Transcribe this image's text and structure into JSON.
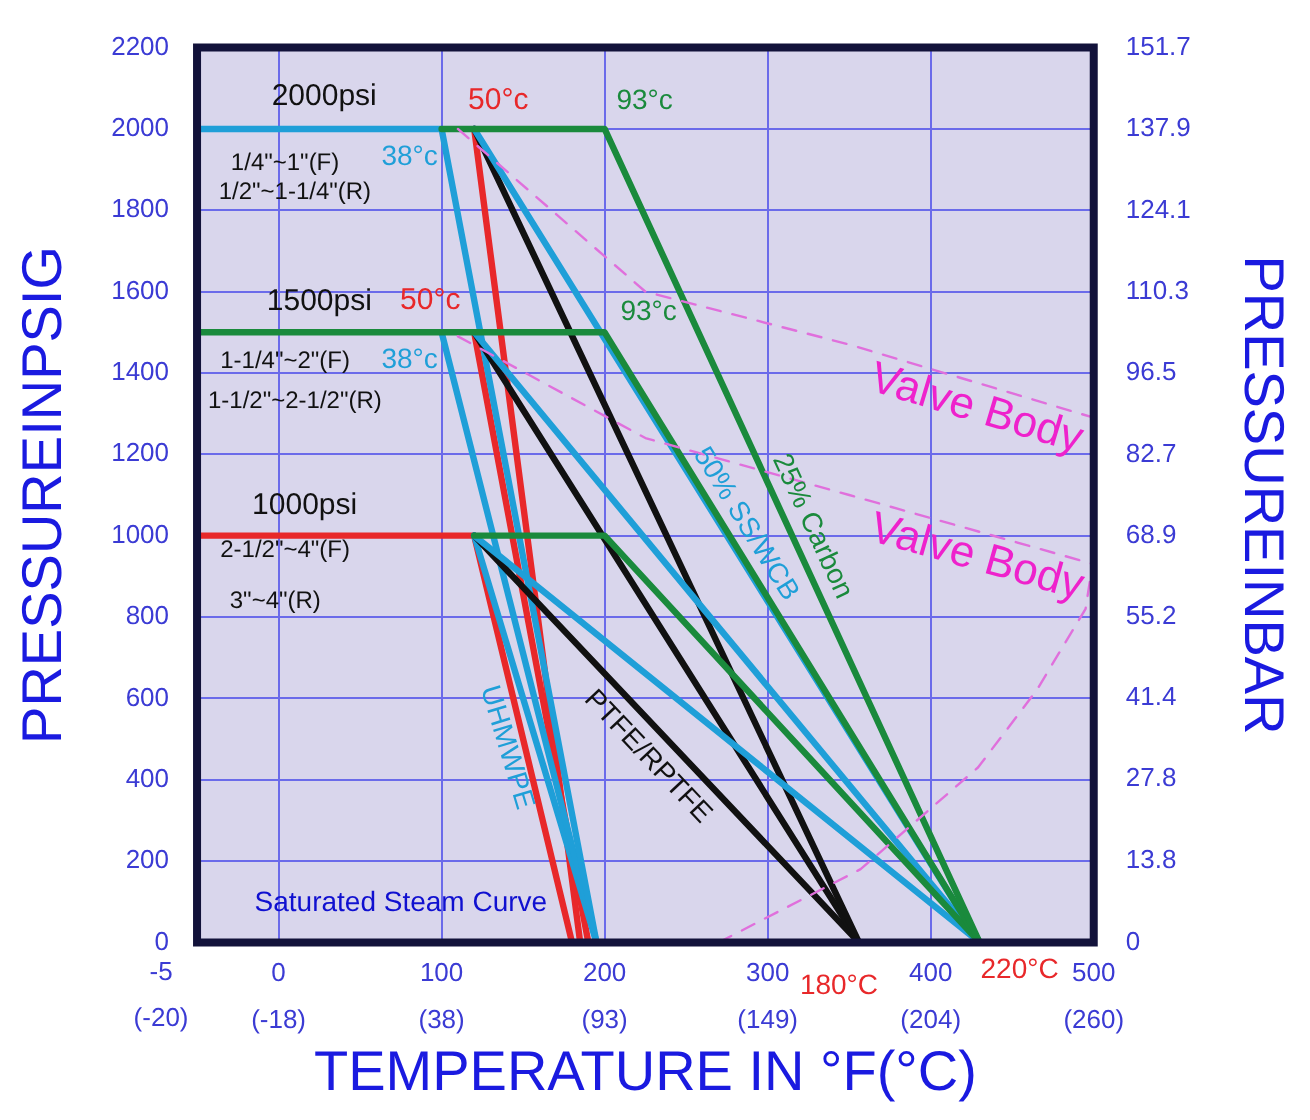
{
  "chart_data": {
    "type": "line",
    "xlabel": "TEMPERATURE IN °F(°C)",
    "ylabel": "PRESSUREINPSIG",
    "y2label": "PRESSUREINBAR",
    "xlim": [
      -50,
      500
    ],
    "xticks": [
      0,
      100,
      200,
      300,
      400,
      500
    ],
    "x2lim": [
      -45.56,
      260
    ],
    "x2ticks": [
      {
        "value": -17.78,
        "label": "(-18)"
      },
      {
        "value": 37.78,
        "label": "(38)"
      },
      {
        "value": 93.33,
        "label": "(93)"
      },
      {
        "value": 148.89,
        "label": "(149)"
      },
      {
        "value": 204.44,
        "label": "(204)"
      },
      {
        "value": 260,
        "label": "(260)"
      }
    ],
    "ylim": [
      0,
      2200
    ],
    "yticks": [
      0,
      200,
      400,
      600,
      800,
      1000,
      1200,
      1400,
      1600,
      1800,
      2000,
      2200
    ],
    "y2lim": [
      0,
      151.7
    ],
    "y2ticks": [
      0,
      13.8,
      27.8,
      41.4,
      55.2,
      68.9,
      82.7,
      96.5,
      110.3,
      124.1,
      137.9,
      151.7
    ],
    "grid": true,
    "legend": false,
    "marker": "none",
    "line_style": "solid",
    "series": [
      {
        "name": "Valve Body",
        "color": "#e070dc",
        "line_style": "dashed",
        "x": [
          110,
          225,
          350,
          500
        ],
        "values": [
          2000,
          1600,
          1470,
          1290
        ]
      },
      {
        "name": "Valve Body",
        "color": "#e070dc",
        "line_style": "dashed",
        "x": [
          110,
          225,
          350,
          500
        ],
        "values": [
          1490,
          1240,
          1100,
          930
        ]
      },
      {
        "color": "#e070dc",
        "line_style": "dashed",
        "x": [
          270,
          357,
          429,
          465,
          495,
          500
        ],
        "values": [
          0,
          180,
          430,
          620,
          820,
          950
        ]
      },
      {
        "name": "25% Carbon",
        "color": "#1a8a3c",
        "x": [
          100,
          200,
          430
        ],
        "values": [
          2000,
          2000,
          0
        ]
      },
      {
        "color": "#1a8a3c",
        "x": [
          -50,
          200,
          430
        ],
        "values": [
          1500,
          1500,
          0
        ]
      },
      {
        "color": "#1a8a3c",
        "x": [
          120,
          200,
          430
        ],
        "values": [
          1000,
          1000,
          0
        ]
      },
      {
        "name": "50% SS/WCB",
        "color": "#1f9fd8",
        "x": [
          120,
          430
        ],
        "values": [
          2000,
          0
        ]
      },
      {
        "color": "#1f9fd8",
        "x": [
          120,
          430
        ],
        "values": [
          1500,
          0
        ]
      },
      {
        "color": "#1f9fd8",
        "x": [
          120,
          430
        ],
        "values": [
          1000,
          0
        ]
      },
      {
        "color": "#111111",
        "x": [
          120,
          356
        ],
        "values": [
          2000,
          0
        ]
      },
      {
        "color": "#111111",
        "x": [
          120,
          356
        ],
        "values": [
          1500,
          0
        ]
      },
      {
        "name": "PTFE/RPTFE",
        "color": "#111111",
        "x": [
          120,
          356
        ],
        "values": [
          1000,
          0
        ]
      },
      {
        "color": "#1f9fd8",
        "x": [
          -50,
          100,
          195
        ],
        "values": [
          2000,
          2000,
          0
        ]
      },
      {
        "color": "#1f9fd8",
        "x": [
          100,
          195
        ],
        "values": [
          1500,
          0
        ]
      },
      {
        "name": "UHMWPE",
        "color": "#1f9fd8",
        "x": [
          120,
          195
        ],
        "values": [
          1000,
          0
        ]
      },
      {
        "color": "#e8282a",
        "x": [
          120,
          185
        ],
        "values": [
          2000,
          0
        ]
      },
      {
        "color": "#e8282a",
        "x": [
          120,
          190
        ],
        "values": [
          1500,
          0
        ]
      },
      {
        "color": "#e8282a",
        "x": [
          -50,
          120,
          180
        ],
        "values": [
          1000,
          1000,
          0
        ]
      }
    ],
    "annotations": [
      "2000psi",
      {
        "text": "50°c",
        "x": 120,
        "y": 2000
      },
      {
        "text": "93°c",
        "x": 200,
        "y": 2000
      },
      {
        "text": "38°c",
        "x": 100,
        "y": 2000
      },
      "1/4\"~1\"(F)",
      "1/2\"~1-1/4\"(R)",
      "1500psi",
      {
        "text": "50°c",
        "x": 120,
        "y": 1500
      },
      {
        "text": "93°c",
        "x": 200,
        "y": 1500
      },
      {
        "text": "38°c",
        "x": 100,
        "y": 1500
      },
      "1-1/4\"~2\"(F)",
      "1-1/2\"~2-1/2\"(R)",
      "1000psi",
      "2-1/2\"~4\"(F)",
      "3\"~4\"(R)",
      "Saturated Steam Curve",
      {
        "text": "180°C",
        "x": 356,
        "y": 0
      },
      {
        "text": "220°C",
        "x": 430,
        "y": 0
      },
      "-5",
      "(-20)"
    ]
  }
}
